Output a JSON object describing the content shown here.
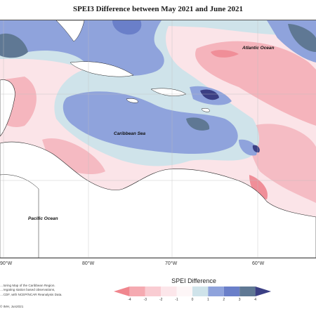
{
  "title": "SPEI3 Difference between May 2021 and June 2021",
  "map": {
    "labels": {
      "atlantic": "Atlantic Ocean",
      "caribbean": "Caribbean Sea",
      "pacific": "Pacific Ocean"
    },
    "longitude_labels": [
      "90°W",
      "80°W",
      "70°W",
      "60°W"
    ],
    "graticule": true
  },
  "legend": {
    "title": "SPEI Difference",
    "ticks": [
      "-4",
      "-3",
      "-2",
      "-1",
      "0",
      "1",
      "2",
      "3",
      "4"
    ],
    "colors": [
      "#f0868e",
      "#f5aab1",
      "#f9ccd2",
      "#fce6ea",
      "#fdf6f7",
      "#cfe3ea",
      "#8fa3dc",
      "#6a7fc9",
      "#5f7894",
      "#3b3f84"
    ]
  },
  "credit": {
    "lines": "…toring Map of the Caribbean Region.\n…regating station based observations,\n…CDF, with NCEP/NCAR Reanalysis Data.",
    "footer": "© IMH, Jun2021"
  }
}
